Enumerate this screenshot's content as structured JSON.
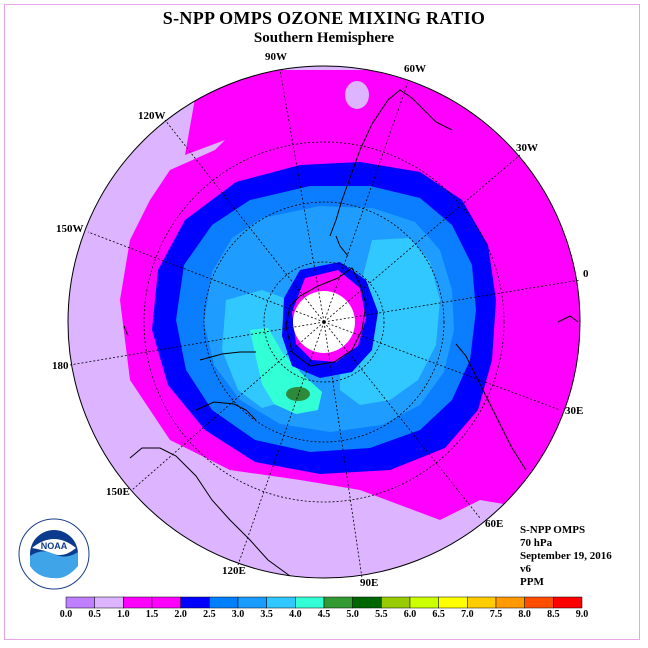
{
  "title": "S-NPP OMPS OZONE MIXING RATIO",
  "subtitle": "Southern Hemisphere",
  "lon_labels": [
    "90W",
    "60W",
    "30W",
    "0",
    "30E",
    "60E",
    "90E",
    "120E",
    "150E",
    "180",
    "150W",
    "120W"
  ],
  "info": {
    "instrument": "S-NPP OMPS",
    "level": "70 hPa",
    "date": "September 19, 2016",
    "version": "v6",
    "units": "PPM"
  },
  "logo_text": "NOAA",
  "colorbar": {
    "ticks": [
      "0.0",
      "0.5",
      "1.0",
      "1.5",
      "2.0",
      "2.5",
      "3.0",
      "3.5",
      "4.0",
      "4.5",
      "5.0",
      "5.5",
      "6.0",
      "6.5",
      "7.0",
      "7.5",
      "8.0",
      "8.5",
      "9.0"
    ],
    "colors": [
      "#bf80ff",
      "#dcb4ff",
      "#ff00ff",
      "#ff00ff",
      "#0000ff",
      "#0080ff",
      "#1a9cff",
      "#30c8ff",
      "#33ffd6",
      "#339933",
      "#006600",
      "#99cc00",
      "#ccff00",
      "#ffff00",
      "#ffcc00",
      "#ff9900",
      "#ff4d00",
      "#ff0000",
      "#8b5a2b"
    ]
  },
  "colors": {
    "lavender": "#dcb4ff",
    "magenta": "#ff00ff",
    "blue": "#0000ff",
    "mid_blue": "#0a7eff",
    "light_blue": "#1e9cff",
    "cyan": "#30c8ff",
    "aqua": "#33ffd6",
    "green": "#2d8a3a"
  }
}
